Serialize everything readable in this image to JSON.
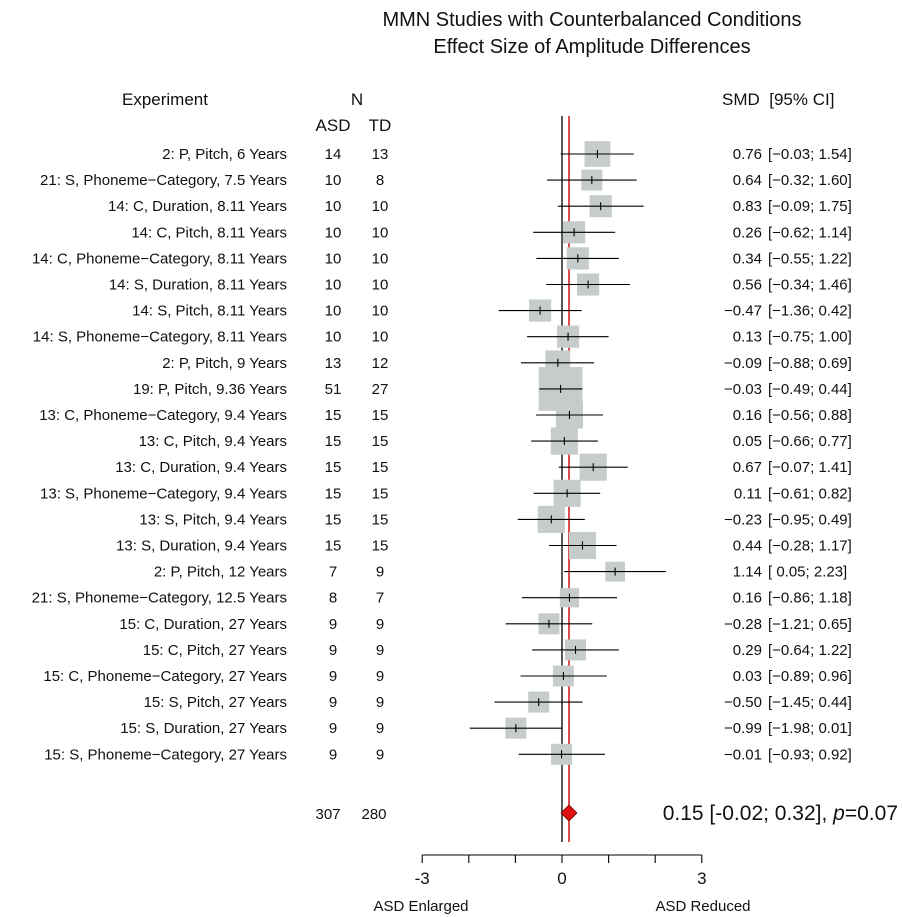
{
  "chart_data": {
    "type": "forest",
    "title_line1": "MMN Studies with Counterbalanced Conditions",
    "title_line2": "Effect Size of Amplitude Differences",
    "headers": {
      "experiment": "Experiment",
      "n": "N",
      "asd": "ASD",
      "td": "TD",
      "smd": "SMD  [95% CI]"
    },
    "xlim": [
      -3,
      3
    ],
    "x_ticks": [
      -3,
      -2,
      -1,
      0,
      1,
      2,
      3
    ],
    "x_tick_labels": [
      {
        "value": -3,
        "label": "-3"
      },
      {
        "value": 0,
        "label": "0"
      },
      {
        "value": 3,
        "label": "3"
      }
    ],
    "x_left_label": "ASD Enlarged",
    "x_right_label": "ASD Reduced",
    "reference_line": 0,
    "pooled_line": 0.15,
    "pooled_line_color": "#d62020",
    "square_color": "#c6cccc",
    "diamond_color": "#e01010",
    "studies": [
      {
        "label": "2: P, Pitch, 6 Years",
        "asd": "14",
        "td": "13",
        "smd": 0.76,
        "lo": -0.03,
        "hi": 1.54,
        "smd_text": "0.76",
        "ci_text": "[−0.03; 1.54]"
      },
      {
        "label": "21: S, Phoneme−Category, 7.5 Years",
        "asd": "10",
        "td": "8",
        "smd": 0.64,
        "lo": -0.32,
        "hi": 1.6,
        "smd_text": "0.64",
        "ci_text": "[−0.32; 1.60]"
      },
      {
        "label": "14: C, Duration, 8.11 Years",
        "asd": "10",
        "td": "10",
        "smd": 0.83,
        "lo": -0.09,
        "hi": 1.75,
        "smd_text": "0.83",
        "ci_text": "[−0.09; 1.75]"
      },
      {
        "label": "14: C, Pitch, 8.11 Years",
        "asd": "10",
        "td": "10",
        "smd": 0.26,
        "lo": -0.62,
        "hi": 1.14,
        "smd_text": "0.26",
        "ci_text": "[−0.62; 1.14]"
      },
      {
        "label": "14: C, Phoneme−Category, 8.11 Years",
        "asd": "10",
        "td": "10",
        "smd": 0.34,
        "lo": -0.55,
        "hi": 1.22,
        "smd_text": "0.34",
        "ci_text": "[−0.55; 1.22]"
      },
      {
        "label": "14: S, Duration, 8.11 Years",
        "asd": "10",
        "td": "10",
        "smd": 0.56,
        "lo": -0.34,
        "hi": 1.46,
        "smd_text": "0.56",
        "ci_text": "[−0.34; 1.46]"
      },
      {
        "label": "14: S, Pitch, 8.11 Years",
        "asd": "10",
        "td": "10",
        "smd": -0.47,
        "lo": -1.36,
        "hi": 0.42,
        "smd_text": "−0.47",
        "ci_text": "[−1.36; 0.42]"
      },
      {
        "label": "14: S, Phoneme−Category, 8.11 Years",
        "asd": "10",
        "td": "10",
        "smd": 0.13,
        "lo": -0.75,
        "hi": 1.0,
        "smd_text": "0.13",
        "ci_text": "[−0.75; 1.00]"
      },
      {
        "label": "2: P, Pitch, 9 Years",
        "asd": "13",
        "td": "12",
        "smd": -0.09,
        "lo": -0.88,
        "hi": 0.69,
        "smd_text": "−0.09",
        "ci_text": "[−0.88; 0.69]"
      },
      {
        "label": "19: P, Pitch, 9.36 Years",
        "asd": "51",
        "td": "27",
        "smd": -0.03,
        "lo": -0.49,
        "hi": 0.44,
        "smd_text": "−0.03",
        "ci_text": "[−0.49; 0.44]"
      },
      {
        "label": "13: C, Phoneme−Category, 9.4 Years",
        "asd": "15",
        "td": "15",
        "smd": 0.16,
        "lo": -0.56,
        "hi": 0.88,
        "smd_text": "0.16",
        "ci_text": "[−0.56; 0.88]"
      },
      {
        "label": "13: C, Pitch, 9.4 Years",
        "asd": "15",
        "td": "15",
        "smd": 0.05,
        "lo": -0.66,
        "hi": 0.77,
        "smd_text": "0.05",
        "ci_text": "[−0.66; 0.77]"
      },
      {
        "label": "13: C, Duration, 9.4 Years",
        "asd": "15",
        "td": "15",
        "smd": 0.67,
        "lo": -0.07,
        "hi": 1.41,
        "smd_text": "0.67",
        "ci_text": "[−0.07; 1.41]"
      },
      {
        "label": "13: S, Phoneme−Category, 9.4 Years",
        "asd": "15",
        "td": "15",
        "smd": 0.11,
        "lo": -0.61,
        "hi": 0.82,
        "smd_text": "0.11",
        "ci_text": "[−0.61; 0.82]"
      },
      {
        "label": "13: S, Pitch, 9.4 Years",
        "asd": "15",
        "td": "15",
        "smd": -0.23,
        "lo": -0.95,
        "hi": 0.49,
        "smd_text": "−0.23",
        "ci_text": "[−0.95; 0.49]"
      },
      {
        "label": "13: S, Duration, 9.4 Years",
        "asd": "15",
        "td": "15",
        "smd": 0.44,
        "lo": -0.28,
        "hi": 1.17,
        "smd_text": "0.44",
        "ci_text": "[−0.28; 1.17]"
      },
      {
        "label": "2: P, Pitch, 12 Years",
        "asd": "7",
        "td": "9",
        "smd": 1.14,
        "lo": 0.05,
        "hi": 2.23,
        "smd_text": "1.14",
        "ci_text": "[ 0.05; 2.23]"
      },
      {
        "label": "21: S, Phoneme−Category, 12.5 Years",
        "asd": "8",
        "td": "7",
        "smd": 0.16,
        "lo": -0.86,
        "hi": 1.18,
        "smd_text": "0.16",
        "ci_text": "[−0.86; 1.18]"
      },
      {
        "label": "15: C, Duration, 27 Years",
        "asd": "9",
        "td": "9",
        "smd": -0.28,
        "lo": -1.21,
        "hi": 0.65,
        "smd_text": "−0.28",
        "ci_text": "[−1.21; 0.65]"
      },
      {
        "label": "15: C, Pitch, 27 Years",
        "asd": "9",
        "td": "9",
        "smd": 0.29,
        "lo": -0.64,
        "hi": 1.22,
        "smd_text": "0.29",
        "ci_text": "[−0.64; 1.22]"
      },
      {
        "label": "15: C, Phoneme−Category, 27 Years",
        "asd": "9",
        "td": "9",
        "smd": 0.03,
        "lo": -0.89,
        "hi": 0.96,
        "smd_text": "0.03",
        "ci_text": "[−0.89; 0.96]"
      },
      {
        "label": "15: S, Pitch, 27 Years",
        "asd": "9",
        "td": "9",
        "smd": -0.5,
        "lo": -1.45,
        "hi": 0.44,
        "smd_text": "−0.50",
        "ci_text": "[−1.45; 0.44]"
      },
      {
        "label": "15: S, Duration, 27 Years",
        "asd": "9",
        "td": "9",
        "smd": -0.99,
        "lo": -1.98,
        "hi": 0.01,
        "smd_text": "−0.99",
        "ci_text": "[−1.98; 0.01]"
      },
      {
        "label": "15: S, Phoneme−Category, 27 Years",
        "asd": "9",
        "td": "9",
        "smd": -0.01,
        "lo": -0.93,
        "hi": 0.92,
        "smd_text": "−0.01",
        "ci_text": "[−0.93; 0.92]"
      }
    ],
    "pooled": {
      "asd_total": "307",
      "td_total": "280",
      "smd": 0.15,
      "lo": -0.02,
      "hi": 0.32,
      "text_main": "0.15 [-0.02; 0.32], ",
      "text_p": "p",
      "text_rest": "=0.07"
    }
  }
}
